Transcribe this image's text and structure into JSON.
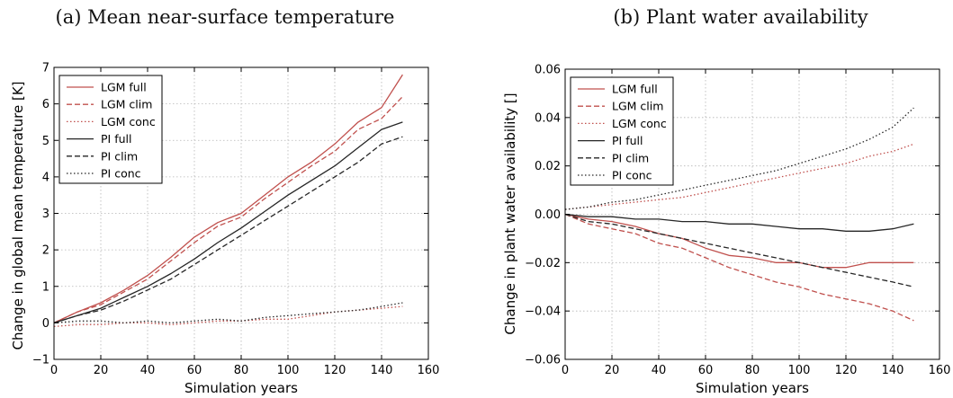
{
  "colors": {
    "lgm": "#c0504d",
    "pi": "#262626"
  },
  "chart_data": [
    {
      "type": "line",
      "title": "(a) Mean near-surface temperature",
      "xlabel": "Simulation years",
      "ylabel": "Change in global mean temperature [K]",
      "xlim": [
        0,
        160
      ],
      "ylim": [
        -1,
        7
      ],
      "xticks": [
        "0",
        "20",
        "40",
        "60",
        "80",
        "100",
        "120",
        "140",
        "160"
      ],
      "yticks": [
        "−1",
        "0",
        "1",
        "2",
        "3",
        "4",
        "5",
        "6",
        "7"
      ],
      "grid": true,
      "legend_position": "top-left",
      "x": [
        0,
        10,
        20,
        30,
        40,
        50,
        60,
        70,
        80,
        90,
        100,
        110,
        120,
        130,
        140,
        149
      ],
      "series": [
        {
          "name": "LGM full",
          "color": "lgm",
          "dash": "solid",
          "values": [
            0.0,
            0.3,
            0.55,
            0.9,
            1.3,
            1.8,
            2.35,
            2.75,
            3.0,
            3.5,
            4.0,
            4.4,
            4.9,
            5.5,
            5.9,
            6.8
          ]
        },
        {
          "name": "LGM clim",
          "color": "lgm",
          "dash": "dashed",
          "values": [
            0.0,
            0.3,
            0.5,
            0.85,
            1.2,
            1.7,
            2.2,
            2.65,
            2.9,
            3.4,
            3.85,
            4.3,
            4.7,
            5.3,
            5.6,
            6.2
          ]
        },
        {
          "name": "LGM conc",
          "color": "lgm",
          "dash": "dotted",
          "values": [
            -0.1,
            -0.05,
            -0.05,
            0.0,
            0.0,
            -0.05,
            0.0,
            0.05,
            0.05,
            0.1,
            0.1,
            0.2,
            0.3,
            0.35,
            0.4,
            0.45
          ]
        },
        {
          "name": "PI full",
          "color": "pi",
          "dash": "solid",
          "values": [
            0.0,
            0.2,
            0.4,
            0.7,
            1.0,
            1.35,
            1.75,
            2.2,
            2.6,
            3.05,
            3.5,
            3.9,
            4.3,
            4.8,
            5.3,
            5.5
          ]
        },
        {
          "name": "PI clim",
          "color": "pi",
          "dash": "dashed",
          "values": [
            0.0,
            0.2,
            0.35,
            0.6,
            0.9,
            1.2,
            1.6,
            2.0,
            2.4,
            2.8,
            3.2,
            3.6,
            4.0,
            4.4,
            4.9,
            5.1
          ]
        },
        {
          "name": "PI conc",
          "color": "pi",
          "dash": "dotted",
          "values": [
            0.0,
            0.05,
            0.05,
            0.0,
            0.05,
            0.0,
            0.05,
            0.1,
            0.05,
            0.15,
            0.2,
            0.25,
            0.3,
            0.35,
            0.45,
            0.55
          ]
        }
      ]
    },
    {
      "type": "line",
      "title": "(b) Plant water availability",
      "xlabel": "Simulation years",
      "ylabel": "Change in plant water availability []",
      "xlim": [
        0,
        160
      ],
      "ylim": [
        -0.06,
        0.06
      ],
      "xticks": [
        "0",
        "20",
        "40",
        "60",
        "80",
        "100",
        "120",
        "140",
        "160"
      ],
      "yticks": [
        "−0.06",
        "−0.04",
        "−0.02",
        "0.00",
        "0.02",
        "0.04",
        "0.06"
      ],
      "grid": true,
      "legend_position": "top-left",
      "x": [
        0,
        10,
        20,
        30,
        40,
        50,
        60,
        70,
        80,
        90,
        100,
        110,
        120,
        130,
        140,
        149
      ],
      "series": [
        {
          "name": "LGM full",
          "color": "lgm",
          "dash": "solid",
          "values": [
            0.0,
            -0.002,
            -0.003,
            -0.005,
            -0.008,
            -0.01,
            -0.014,
            -0.017,
            -0.018,
            -0.02,
            -0.02,
            -0.022,
            -0.022,
            -0.02,
            -0.02,
            -0.02
          ]
        },
        {
          "name": "LGM clim",
          "color": "lgm",
          "dash": "dashed",
          "values": [
            0.0,
            -0.004,
            -0.006,
            -0.008,
            -0.012,
            -0.014,
            -0.018,
            -0.022,
            -0.025,
            -0.028,
            -0.03,
            -0.033,
            -0.035,
            -0.037,
            -0.04,
            -0.044
          ]
        },
        {
          "name": "LGM conc",
          "color": "lgm",
          "dash": "dotted",
          "values": [
            0.002,
            0.003,
            0.004,
            0.005,
            0.006,
            0.007,
            0.009,
            0.011,
            0.013,
            0.015,
            0.017,
            0.019,
            0.021,
            0.024,
            0.026,
            0.029
          ]
        },
        {
          "name": "PI full",
          "color": "pi",
          "dash": "solid",
          "values": [
            0.0,
            -0.001,
            -0.001,
            -0.002,
            -0.002,
            -0.003,
            -0.003,
            -0.004,
            -0.004,
            -0.005,
            -0.006,
            -0.006,
            -0.007,
            -0.007,
            -0.006,
            -0.004
          ]
        },
        {
          "name": "PI clim",
          "color": "pi",
          "dash": "dashed",
          "values": [
            0.0,
            -0.003,
            -0.004,
            -0.006,
            -0.008,
            -0.01,
            -0.012,
            -0.014,
            -0.016,
            -0.018,
            -0.02,
            -0.022,
            -0.024,
            -0.026,
            -0.028,
            -0.03
          ]
        },
        {
          "name": "PI conc",
          "color": "pi",
          "dash": "dotted",
          "values": [
            0.002,
            0.003,
            0.005,
            0.006,
            0.008,
            0.01,
            0.012,
            0.014,
            0.016,
            0.018,
            0.021,
            0.024,
            0.027,
            0.031,
            0.036,
            0.044
          ]
        }
      ]
    }
  ]
}
